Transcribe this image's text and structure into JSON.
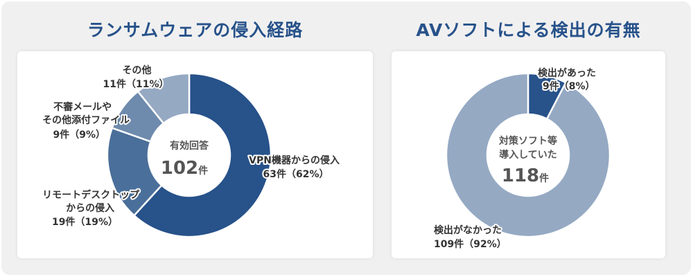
{
  "chart_data": [
    {
      "type": "pie",
      "title": "ランサムウェアの侵入経路",
      "center_label": "有効回答",
      "center_total": "102",
      "center_unit": "件",
      "slices": [
        {
          "name": "VPN機器からの侵入",
          "count": 63,
          "percent": 62,
          "color": "#27528a",
          "label_lines": [
            "VPN機器からの侵入",
            "63件（62%）"
          ]
        },
        {
          "name": "リモートデスクトップからの侵入",
          "count": 19,
          "percent": 19,
          "color": "#4a6f9a",
          "label_lines": [
            "リモートデスクトップ",
            "からの侵入",
            "19件（19%）"
          ]
        },
        {
          "name": "不審メールやその他添付ファイル",
          "count": 9,
          "percent": 9,
          "color": "#6e8bad",
          "label_lines": [
            "不審メールや",
            "その他添付ファイル",
            "9件（9%）"
          ]
        },
        {
          "name": "その他",
          "count": 11,
          "percent": 11,
          "color": "#95a9c3",
          "label_lines": [
            "その他",
            "11件（11%）"
          ]
        }
      ]
    },
    {
      "type": "pie",
      "title": "AVソフトによる検出の有無",
      "center_label_lines": [
        "対策ソフト等",
        "導入していた"
      ],
      "center_total": "118",
      "center_unit": "件",
      "slices": [
        {
          "name": "検出があった",
          "count": 9,
          "percent": 8,
          "color": "#27528a",
          "label_lines": [
            "検出があった",
            "9件（8%）"
          ]
        },
        {
          "name": "検出がなかった",
          "count": 109,
          "percent": 92,
          "color": "#95a9c3",
          "label_lines": [
            "検出がなかった",
            "109件（92%）"
          ]
        }
      ]
    }
  ]
}
